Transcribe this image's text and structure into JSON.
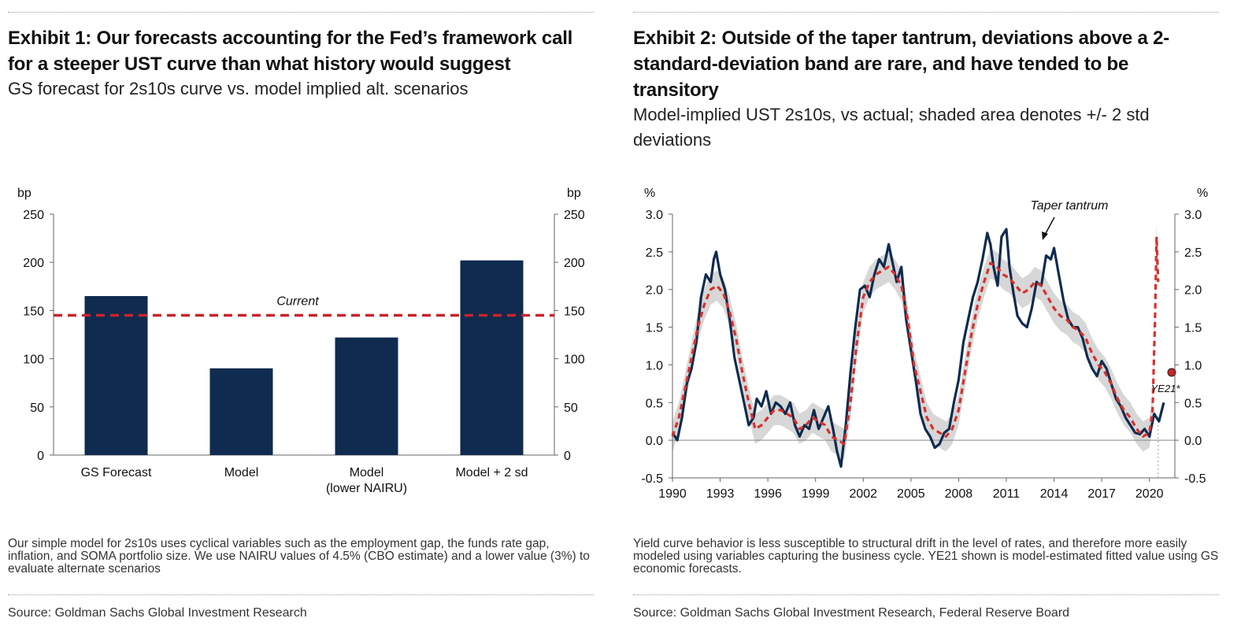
{
  "exhibit1": {
    "title": "Exhibit 1: Our forecasts accounting for the Fed’s framework call for a steeper UST curve than what history would suggest",
    "subtitle": "GS forecast for 2s10s curve vs. model implied alt. scenarios",
    "note": "Our simple model for 2s10s uses cyclical variables such as the employment gap, the funds rate gap, inflation, and SOMA portfolio size. We use NAIRU values of 4.5% (CBO estimate) and a lower value (3%) to evaluate alternate scenarios",
    "source": "Source: Goldman Sachs Global Investment Research"
  },
  "exhibit2": {
    "title": "Exhibit 2: Outside of the taper tantrum, deviations above a 2-standard-deviation band are rare, and have tended to be transitory",
    "subtitle": "Model-implied UST 2s10s, vs actual; shaded area denotes +/- 2 std deviations",
    "note": "Yield curve behavior is less susceptible to structural drift in the level of rates, and therefore more easily modeled using variables capturing the business cycle. YE21 shown is model-estimated fitted value using GS economic forecasts.",
    "source": "Source: Goldman Sachs Global Investment Research, Federal Reserve Board"
  },
  "chart_data": [
    {
      "type": "bar",
      "title": "GS forecast for 2s10s curve vs. model implied alt. scenarios",
      "categories": [
        "GS Forecast",
        "Model",
        "Model\n(lower NAIRU)",
        "Model + 2 sd"
      ],
      "category_lines": [
        [
          "GS Forecast"
        ],
        [
          "Model"
        ],
        [
          "Model",
          "(lower NAIRU)"
        ],
        [
          "Model + 2 sd"
        ]
      ],
      "values": [
        165,
        90,
        122,
        202
      ],
      "ylabel": "bp",
      "ylim": [
        0,
        250
      ],
      "yticks": [
        0,
        50,
        100,
        150,
        200,
        250
      ],
      "reference_line": {
        "label": "Current",
        "value": 145
      },
      "colors": {
        "bar": "#0f2b4f",
        "reference": "#c8242b"
      },
      "grid": false
    },
    {
      "type": "line",
      "title": "Model-implied UST 2s10s, vs actual; shaded area denotes +/- 2 std deviations",
      "ylabel": "%",
      "ylim": [
        -0.5,
        3.0
      ],
      "yticks": [
        -0.5,
        0.0,
        0.5,
        1.0,
        1.5,
        2.0,
        2.5,
        3.0
      ],
      "xlim": [
        1990,
        2021.6
      ],
      "xticks": [
        1990,
        1993,
        1996,
        1999,
        2002,
        2005,
        2008,
        2011,
        2014,
        2017,
        2020
      ],
      "band_sd": 0.2,
      "series": [
        {
          "name": "Actual UST 2s10s",
          "style": "solid",
          "color": "#0f2b4f",
          "x": [
            1990.0,
            1990.3,
            1990.6,
            1990.9,
            1991.2,
            1991.5,
            1991.8,
            1992.1,
            1992.4,
            1992.6,
            1992.75,
            1993.0,
            1993.3,
            1993.6,
            1993.9,
            1994.2,
            1994.5,
            1994.8,
            1995.1,
            1995.3,
            1995.6,
            1995.9,
            1996.2,
            1996.5,
            1996.8,
            1997.1,
            1997.4,
            1997.7,
            1998.0,
            1998.3,
            1998.6,
            1998.9,
            1999.2,
            1999.5,
            1999.8,
            2000.1,
            2000.35,
            2000.6,
            2000.9,
            2001.2,
            2001.5,
            2001.8,
            2002.1,
            2002.4,
            2002.7,
            2003.0,
            2003.3,
            2003.6,
            2003.85,
            2004.1,
            2004.4,
            2004.7,
            2005.0,
            2005.3,
            2005.6,
            2005.9,
            2006.2,
            2006.5,
            2006.8,
            2007.1,
            2007.4,
            2007.7,
            2008.0,
            2008.3,
            2008.6,
            2008.9,
            2009.2,
            2009.5,
            2009.8,
            2010.0,
            2010.2,
            2010.45,
            2010.7,
            2011.0,
            2011.2,
            2011.45,
            2011.7,
            2012.0,
            2012.3,
            2012.6,
            2012.9,
            2013.2,
            2013.5,
            2013.8,
            2014.0,
            2014.3,
            2014.6,
            2014.9,
            2015.2,
            2015.5,
            2015.8,
            2016.1,
            2016.4,
            2016.7,
            2017.0,
            2017.3,
            2017.6,
            2017.9,
            2018.2,
            2018.5,
            2018.8,
            2019.1,
            2019.4,
            2019.7,
            2020.0,
            2020.3,
            2020.6,
            2020.9
          ],
          "y": [
            0.1,
            0.0,
            0.3,
            0.75,
            0.95,
            1.3,
            1.9,
            2.2,
            2.1,
            2.4,
            2.5,
            2.2,
            2.0,
            1.6,
            1.1,
            0.8,
            0.5,
            0.2,
            0.3,
            0.55,
            0.45,
            0.65,
            0.35,
            0.5,
            0.45,
            0.35,
            0.5,
            0.2,
            0.05,
            0.2,
            0.15,
            0.4,
            0.15,
            0.3,
            0.45,
            0.15,
            -0.15,
            -0.35,
            0.2,
            0.9,
            1.5,
            2.0,
            2.05,
            1.9,
            2.2,
            2.4,
            2.3,
            2.6,
            2.35,
            2.1,
            2.3,
            1.6,
            1.2,
            0.8,
            0.35,
            0.15,
            0.05,
            -0.1,
            -0.05,
            0.1,
            0.15,
            0.5,
            0.8,
            1.3,
            1.6,
            1.9,
            2.1,
            2.4,
            2.75,
            2.6,
            2.3,
            2.05,
            2.7,
            2.8,
            2.3,
            1.95,
            1.65,
            1.55,
            1.5,
            1.75,
            2.1,
            2.05,
            2.45,
            2.4,
            2.55,
            2.2,
            1.85,
            1.6,
            1.5,
            1.5,
            1.35,
            1.1,
            0.95,
            0.85,
            1.05,
            0.95,
            0.75,
            0.55,
            0.45,
            0.3,
            0.2,
            0.1,
            0.08,
            0.15,
            0.05,
            0.35,
            0.25,
            0.5
          ]
        },
        {
          "name": "Model-implied UST 2s10s",
          "style": "dashed",
          "color": "#d9302b",
          "x": [
            1990.0,
            1990.4,
            1990.8,
            1991.2,
            1991.6,
            1992.0,
            1992.4,
            1992.8,
            1993.2,
            1993.6,
            1994.0,
            1994.4,
            1994.8,
            1995.2,
            1995.6,
            1996.0,
            1996.4,
            1996.8,
            1997.2,
            1997.6,
            1998.0,
            1998.4,
            1998.8,
            1999.2,
            1999.6,
            2000.0,
            2000.4,
            2000.8,
            2001.2,
            2001.6,
            2002.0,
            2002.4,
            2002.8,
            2003.2,
            2003.6,
            2004.0,
            2004.4,
            2004.8,
            2005.2,
            2005.6,
            2006.0,
            2006.4,
            2006.8,
            2007.2,
            2007.6,
            2008.0,
            2008.4,
            2008.8,
            2009.2,
            2009.6,
            2010.0,
            2010.4,
            2010.8,
            2011.2,
            2011.6,
            2012.0,
            2012.4,
            2012.8,
            2013.2,
            2013.6,
            2014.0,
            2014.4,
            2014.8,
            2015.2,
            2015.6,
            2016.0,
            2016.4,
            2016.8,
            2017.2,
            2017.6,
            2018.0,
            2018.4,
            2018.8,
            2019.2,
            2019.6,
            2020.0,
            2020.2,
            2020.35,
            2020.45,
            2020.55
          ],
          "y": [
            0.05,
            0.3,
            0.7,
            1.1,
            1.5,
            1.8,
            2.0,
            2.05,
            1.95,
            1.7,
            1.35,
            0.9,
            0.5,
            0.15,
            0.2,
            0.3,
            0.4,
            0.4,
            0.35,
            0.3,
            0.15,
            0.2,
            0.3,
            0.25,
            0.2,
            0.05,
            0.0,
            -0.05,
            0.5,
            1.3,
            1.9,
            2.1,
            2.2,
            2.25,
            2.3,
            2.2,
            2.05,
            1.6,
            1.0,
            0.65,
            0.3,
            0.15,
            0.1,
            0.05,
            0.15,
            0.4,
            0.9,
            1.4,
            1.8,
            2.1,
            2.35,
            2.3,
            2.2,
            2.15,
            2.05,
            1.95,
            2.0,
            2.1,
            2.05,
            1.9,
            1.75,
            1.65,
            1.6,
            1.5,
            1.45,
            1.35,
            1.15,
            1.0,
            0.9,
            0.75,
            0.55,
            0.4,
            0.3,
            0.15,
            0.05,
            0.1,
            0.4,
            1.6,
            2.7,
            2.1
          ]
        }
      ],
      "point": {
        "label": "YE21*",
        "x": 2021.4,
        "y": 0.9,
        "color": "#c8242b"
      },
      "annotations": [
        {
          "label": "Taper tantrum",
          "x": 2014.0,
          "y": 2.55
        }
      ],
      "grid": false
    }
  ]
}
